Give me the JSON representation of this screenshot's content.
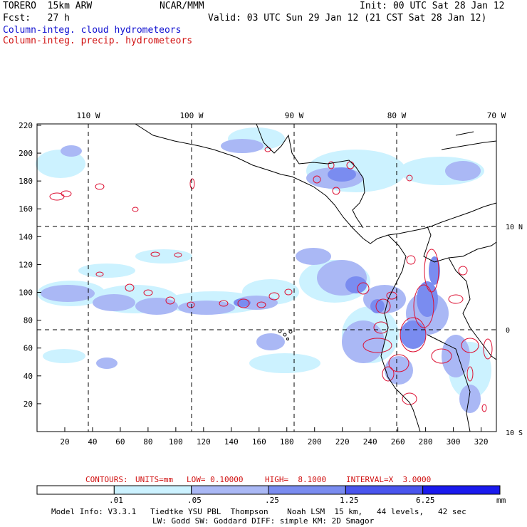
{
  "header": {
    "model": "TORERO  15km ARW",
    "org": "NCAR/MMM",
    "init": "Init: 00 UTC Sat 28 Jan 12",
    "fcst": "Fcst:   27 h",
    "valid": "Valid: 03 UTC Sun 29 Jan 12 (21 CST Sat 28 Jan 12)",
    "field1": "Column-integ. cloud hydrometeors",
    "field2": "Column-integ. precip. hydrometeors"
  },
  "colors": {
    "field1": "#1010d0",
    "field2": "#d01010",
    "coast": "#000000",
    "contour": "#dd1133"
  },
  "map": {
    "lon_labels": [
      "110 W",
      "100 W",
      "90 W",
      "80 W",
      "70 W"
    ],
    "lat_labels": [
      "10 N",
      "0",
      "10 S"
    ],
    "y_ticks": [
      "220",
      "200",
      "180",
      "160",
      "140",
      "120",
      "100",
      "80",
      "60",
      "40",
      "20"
    ],
    "x_ticks": [
      "20",
      "40",
      "60",
      "80",
      "100",
      "120",
      "140",
      "160",
      "180",
      "200",
      "220",
      "240",
      "260",
      "280",
      "300",
      "320"
    ]
  },
  "contours_info": {
    "label": "CONTOURS:",
    "units": "UNITS=mm",
    "low": "LOW= 0.10000",
    "high": "HIGH=  8.1000",
    "interval": "INTERVAL=X  3.0000"
  },
  "colorbar": {
    "units": "mm",
    "labels": [
      ".01",
      ".05",
      ".25",
      "1.25",
      "6.25"
    ],
    "colors": [
      "#ffffff",
      "#ccf2ff",
      "#aab8f5",
      "#7a8cf0",
      "#4a55ee",
      "#1a1aee"
    ]
  },
  "footer": {
    "line1": "Model Info: V3.3.1   Tiedtke YSU PBL  Thompson    Noah LSM  15 km,   44 levels,   42 sec",
    "line2": "LW: Godd SW: Goddard DIFF: simple KM: 2D Smagor"
  }
}
